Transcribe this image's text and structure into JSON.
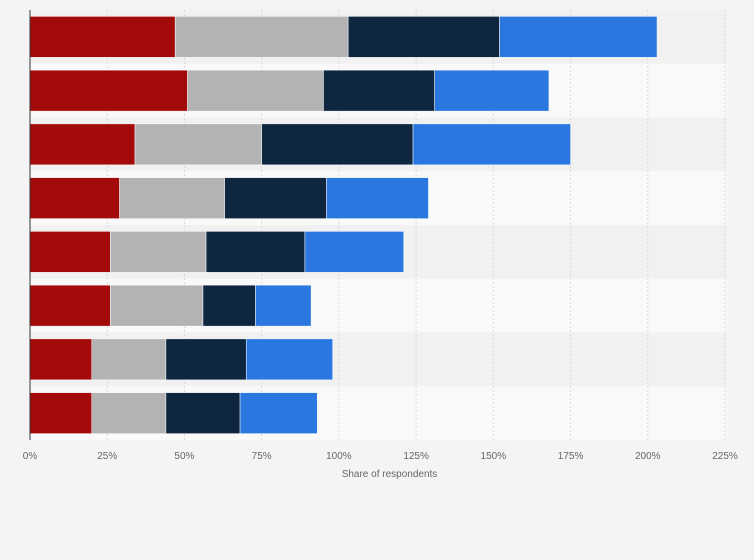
{
  "chart_data": {
    "type": "bar",
    "orientation": "horizontal",
    "stacked": true,
    "categories": [
      "",
      "",
      "",
      "",
      "",
      "",
      "",
      ""
    ],
    "series": [
      {
        "color": "#a30a0a",
        "values": [
          47,
          51,
          34,
          29,
          26,
          26,
          20,
          20
        ]
      },
      {
        "color": "#b3b3b3",
        "values": [
          56,
          44,
          41,
          34,
          31,
          30,
          24,
          24
        ]
      },
      {
        "color": "#0e2640",
        "values": [
          49,
          36,
          49,
          33,
          32,
          17,
          26,
          24
        ]
      },
      {
        "color": "#2a78df",
        "values": [
          51,
          37,
          51,
          33,
          32,
          18,
          28,
          25
        ]
      }
    ],
    "xlim": [
      0,
      225
    ],
    "xticks": [
      "0%",
      "25%",
      "50%",
      "75%",
      "100%",
      "125%",
      "150%",
      "175%",
      "200%",
      "225%"
    ],
    "xlabel": "Share of respondents",
    "grid": true,
    "legend": false
  }
}
